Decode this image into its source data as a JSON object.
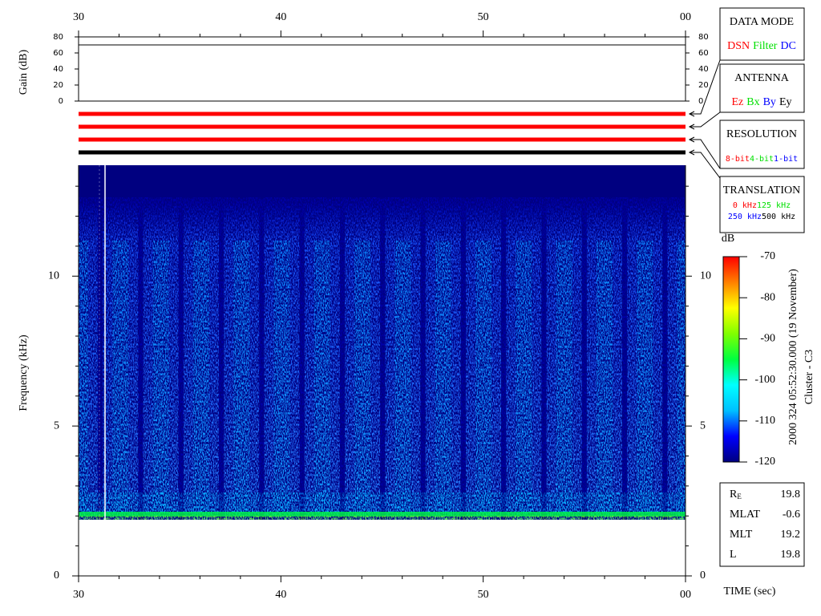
{
  "chart_data": [
    {
      "type": "line",
      "ylabel": "Gain (dB)",
      "xlim": [
        30,
        60
      ],
      "xticks": [
        30,
        40,
        50,
        {
          "value": 60,
          "label": "00"
        }
      ],
      "xminorticks": [
        32,
        34,
        36,
        38,
        42,
        44,
        46,
        48,
        52,
        54,
        56,
        58
      ],
      "ylim": [
        0,
        80
      ],
      "yticks": [
        0,
        20,
        40,
        60,
        80
      ],
      "series": [
        {
          "color": "#000000",
          "x": [
            30,
            60
          ],
          "values": [
            70,
            70
          ]
        }
      ]
    },
    {
      "type": "spectrogram",
      "ylabel": "Frequency (kHz)",
      "xlabel": "TIME (sec)",
      "xlim": [
        30,
        60
      ],
      "xticks": [
        30,
        40,
        50,
        {
          "value": 60,
          "label": "00"
        }
      ],
      "xminorticks": [
        32,
        34,
        36,
        38,
        42,
        44,
        46,
        48,
        52,
        54,
        56,
        58
      ],
      "ylim": [
        0,
        13.7
      ],
      "yticks": [
        0,
        5,
        10
      ],
      "yminorticks": [
        1,
        2,
        3,
        4,
        6,
        7,
        8,
        9,
        11,
        12,
        13
      ]
    },
    {
      "type": "colorbar",
      "title": "dB",
      "ylim": [
        -120,
        -70
      ],
      "yticks": [
        -70,
        -80,
        -90,
        -100,
        -110,
        -120
      ],
      "colors": [
        "#000080",
        "#0000ff",
        "#00c0ff",
        "#00ffff",
        "#00ff40",
        "#80ff00",
        "#ffff00",
        "#ff8000",
        "#ff0000"
      ]
    }
  ],
  "mode_panel": [
    {
      "title": "DATA MODE",
      "bar_color": "#ff0000",
      "rows": [
        [
          {
            "label": "DSN",
            "color": "#ff0000"
          },
          {
            "label": "Filter",
            "color": "#00e000"
          },
          {
            "label": "DC",
            "color": "#0000ff"
          }
        ]
      ]
    },
    {
      "title": "ANTENNA",
      "bar_color": "#ff0000",
      "rows": [
        [
          {
            "label": "Ez",
            "color": "#ff0000"
          },
          {
            "label": "Bx",
            "color": "#00e000"
          },
          {
            "label": "By",
            "color": "#0000ff"
          },
          {
            "label": "Ey",
            "color": "#000000"
          }
        ]
      ]
    },
    {
      "title": "RESOLUTION",
      "bar_color": "#ff0000",
      "rows": [
        [
          {
            "label": "8-bit",
            "color": "#ff0000"
          },
          {
            "label": "4-bit",
            "color": "#00e000"
          },
          {
            "label": "1-bit",
            "color": "#0000ff"
          }
        ]
      ]
    },
    {
      "title": "TRANSLATION",
      "bar_color": "#000000",
      "rows": [
        [
          {
            "label": "0 kHz",
            "color": "#ff0000"
          },
          {
            "label": "125 kHz",
            "color": "#00e000"
          }
        ],
        [
          {
            "label": "250 kHz",
            "color": "#0000ff"
          },
          {
            "label": "500 kHz",
            "color": "#000000"
          }
        ]
      ]
    }
  ],
  "caption": [
    "2000 324 05:52:30.000 (19 November)",
    "Cluster - C3"
  ],
  "ephemeris": [
    {
      "label": "R",
      "sub": "E",
      "value": 19.8
    },
    {
      "label": "MLAT",
      "value": -0.6
    },
    {
      "label": "MLT",
      "value": 19.2
    },
    {
      "label": "L",
      "value": 19.8
    }
  ]
}
